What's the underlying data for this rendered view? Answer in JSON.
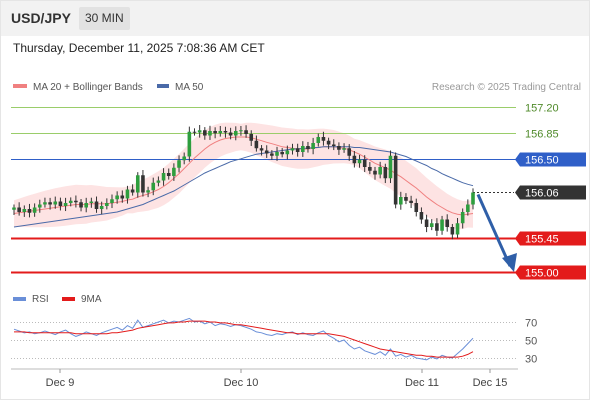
{
  "header": {
    "symbol": "USD/JPY",
    "timeframe": "30 MIN",
    "datetime": "Thursday, December 11, 2025 7:08:36 AM CET"
  },
  "legend": {
    "ma20_bb_label": "MA 20 + Bollinger Bands",
    "ma50_label": "MA 50",
    "attribution": "Research © 2025 Trading Central",
    "rsi_label": "RSI",
    "rsi_ma_label": "9MA"
  },
  "colors": {
    "ma20": "#f08080",
    "bollinger_fill": "#fde3e3",
    "ma50": "#4a6aa8",
    "resistance_green": "#9acd6a",
    "pivot_blue": "#2f5fc8",
    "support_red": "#e31b1b",
    "current_price_bg": "#333333",
    "arrow": "#2f5fa8",
    "candle_up": "#2e9e3e",
    "candle_down": "#333333",
    "rsi": "#6a8fd8",
    "rsi_ma": "#e31b1b"
  },
  "chart_data": [
    {
      "type": "candlestick",
      "x_labels": [
        "Dec 9",
        "Dec 10",
        "Dec 11",
        "Dec 15"
      ],
      "ylim": [
        154.95,
        157.3
      ],
      "levels": [
        {
          "value": 157.2,
          "label": "157.20",
          "kind": "resistance"
        },
        {
          "value": 156.85,
          "label": "156.85",
          "kind": "resistance"
        },
        {
          "value": 156.5,
          "label": "156.50",
          "kind": "pivot"
        },
        {
          "value": 156.06,
          "label": "156.06",
          "kind": "current"
        },
        {
          "value": 155.45,
          "label": "155.45",
          "kind": "support"
        },
        {
          "value": 155.0,
          "label": "155.00",
          "kind": "support"
        }
      ],
      "closes": [
        155.86,
        155.8,
        155.84,
        155.79,
        155.86,
        155.9,
        155.93,
        155.9,
        155.94,
        155.88,
        155.92,
        155.95,
        155.93,
        155.86,
        155.92,
        155.94,
        155.84,
        155.88,
        155.92,
        155.97,
        156.02,
        155.98,
        156.1,
        156.06,
        156.29,
        156.06,
        156.09,
        156.19,
        156.22,
        156.32,
        156.28,
        156.39,
        156.49,
        156.54,
        156.87,
        156.86,
        156.89,
        156.82,
        156.88,
        156.85,
        156.88,
        156.86,
        156.82,
        156.88,
        156.89,
        156.84,
        156.75,
        156.65,
        156.62,
        156.58,
        156.55,
        156.6,
        156.57,
        156.62,
        156.65,
        156.6,
        156.68,
        156.64,
        156.72,
        156.8,
        156.75,
        156.7,
        156.68,
        156.63,
        156.65,
        156.55,
        156.45,
        156.5,
        156.4,
        156.35,
        156.3,
        156.4,
        156.25,
        156.55,
        155.9,
        156.0,
        155.95,
        155.92,
        155.8,
        155.7,
        155.6,
        155.65,
        155.55,
        155.7,
        155.6,
        155.5,
        155.65,
        155.8,
        155.9,
        156.06
      ],
      "ma20": [
        155.78,
        155.79,
        155.8,
        155.81,
        155.82,
        155.83,
        155.84,
        155.85,
        155.86,
        155.87,
        155.88,
        155.89,
        155.9,
        155.9,
        155.9,
        155.91,
        155.91,
        155.91,
        155.91,
        155.92,
        155.93,
        155.94,
        155.96,
        155.97,
        156.0,
        156.02,
        156.04,
        156.07,
        156.1,
        156.14,
        156.19,
        156.25,
        156.31,
        156.38,
        156.45,
        156.52,
        156.58,
        156.64,
        156.69,
        156.73,
        156.76,
        156.78,
        156.79,
        156.8,
        156.8,
        156.8,
        156.79,
        156.77,
        156.75,
        156.73,
        156.71,
        156.69,
        156.67,
        156.66,
        156.65,
        156.64,
        156.64,
        156.64,
        156.65,
        156.66,
        156.67,
        156.67,
        156.67,
        156.66,
        156.65,
        156.63,
        156.6,
        156.57,
        156.53,
        156.49,
        156.45,
        156.42,
        156.39,
        156.36,
        156.31,
        156.27,
        156.22,
        156.17,
        156.12,
        156.06,
        156.0,
        155.95,
        155.9,
        155.86,
        155.82,
        155.79,
        155.77,
        155.76,
        155.77,
        155.78
      ],
      "ma50": [
        155.6,
        155.61,
        155.62,
        155.63,
        155.64,
        155.65,
        155.66,
        155.67,
        155.68,
        155.69,
        155.7,
        155.71,
        155.72,
        155.73,
        155.74,
        155.75,
        155.76,
        155.77,
        155.78,
        155.79,
        155.8,
        155.82,
        155.84,
        155.86,
        155.88,
        155.9,
        155.93,
        155.96,
        155.99,
        156.02,
        156.05,
        156.08,
        156.12,
        156.16,
        156.2,
        156.24,
        156.28,
        156.32,
        156.35,
        156.38,
        156.41,
        156.44,
        156.47,
        156.49,
        156.51,
        156.53,
        156.55,
        156.57,
        156.58,
        156.59,
        156.6,
        156.61,
        156.62,
        156.63,
        156.64,
        156.64,
        156.65,
        156.65,
        156.66,
        156.66,
        156.67,
        156.67,
        156.67,
        156.67,
        156.67,
        156.67,
        156.66,
        156.66,
        156.65,
        156.64,
        156.63,
        156.62,
        156.61,
        156.6,
        156.58,
        156.56,
        156.54,
        156.51,
        156.48,
        156.45,
        156.42,
        156.38,
        156.35,
        156.31,
        156.28,
        156.25,
        156.22,
        156.19,
        156.17,
        156.15
      ],
      "bollinger_width": 0.22,
      "projection": {
        "from": 156.06,
        "to": 155.0
      }
    },
    {
      "type": "line",
      "title": "RSI",
      "ylim": [
        20,
        80
      ],
      "ticks": [
        70,
        50,
        30
      ],
      "rsi": [
        62,
        60,
        58,
        59,
        57,
        58,
        60,
        58,
        56,
        59,
        61,
        57,
        54,
        56,
        59,
        57,
        55,
        58,
        60,
        62,
        64,
        61,
        66,
        63,
        72,
        64,
        66,
        68,
        70,
        72,
        69,
        71,
        70,
        72,
        74,
        70,
        71,
        68,
        70,
        66,
        68,
        67,
        65,
        67,
        66,
        64,
        62,
        59,
        58,
        56,
        55,
        57,
        56,
        58,
        59,
        56,
        58,
        56,
        55,
        58,
        60,
        55,
        52,
        48,
        50,
        44,
        40,
        42,
        38,
        36,
        34,
        37,
        33,
        40,
        32,
        34,
        31,
        33,
        30,
        29,
        28,
        31,
        29,
        33,
        31,
        30,
        35,
        40,
        46,
        52
      ],
      "rsi_ma": [
        59,
        59,
        59,
        58,
        58,
        58,
        58,
        58,
        58,
        58,
        58,
        58,
        57,
        57,
        57,
        57,
        57,
        57,
        57,
        58,
        58,
        59,
        60,
        61,
        63,
        64,
        65,
        66,
        67,
        68,
        69,
        69,
        70,
        70,
        71,
        71,
        71,
        71,
        70,
        70,
        69,
        69,
        68,
        67,
        67,
        66,
        65,
        64,
        63,
        62,
        61,
        60,
        59,
        58,
        58,
        57,
        57,
        57,
        57,
        57,
        57,
        57,
        56,
        55,
        54,
        52,
        50,
        48,
        46,
        44,
        42,
        40,
        39,
        38,
        37,
        36,
        35,
        34,
        33,
        33,
        32,
        32,
        31,
        31,
        31,
        31,
        31,
        32,
        34,
        37
      ]
    }
  ]
}
